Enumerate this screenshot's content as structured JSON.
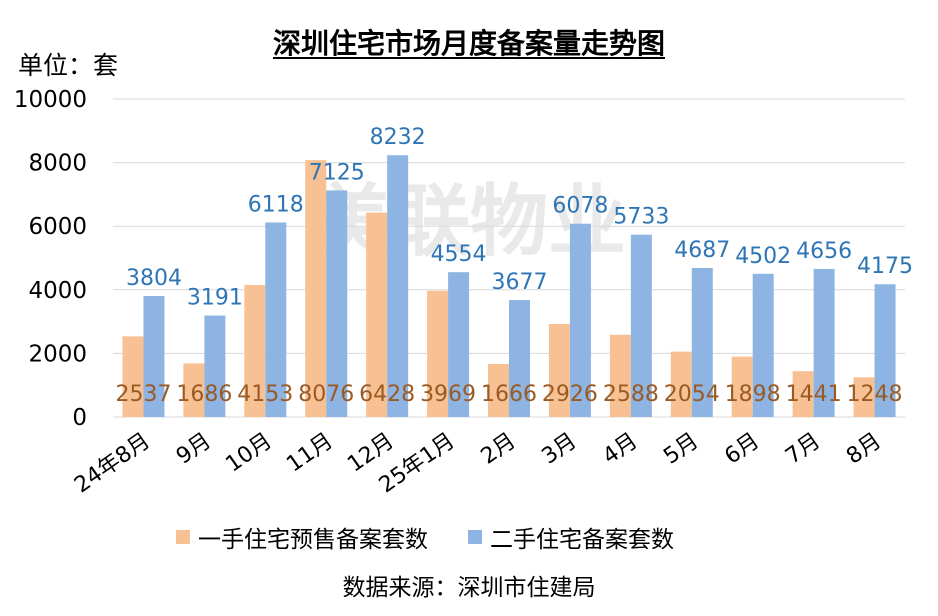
{
  "title": "深圳住宅市场月度备案量走势图",
  "unit_label": "单位：套",
  "source": "数据来源：深圳市住建局",
  "watermark": "美联物业",
  "colors": {
    "series1": "#f8c193",
    "series2": "#8db4e2",
    "label1": "#9a5a24",
    "label2": "#2e75b6",
    "grid": "#d9d9d9"
  },
  "chart_data": {
    "type": "bar",
    "title": "深圳住宅市场月度备案量走势图",
    "ylabel": "单位：套",
    "ylim": [
      0,
      10000
    ],
    "yticks": [
      "0",
      "2000",
      "4000",
      "6000",
      "8000",
      "10000"
    ],
    "grid": true,
    "legend_position": "bottom",
    "categories": [
      "24年8月",
      "9月",
      "10月",
      "11月",
      "12月",
      "25年1月",
      "2月",
      "3月",
      "4月",
      "5月",
      "6月",
      "7月",
      "8月"
    ],
    "series": [
      {
        "name": "一手住宅预售备案套数",
        "values": [
          2537,
          1686,
          4153,
          8076,
          6428,
          3969,
          1666,
          2926,
          2588,
          2054,
          1898,
          1441,
          1248
        ]
      },
      {
        "name": "二手住宅备案套数",
        "values": [
          3804,
          3191,
          6118,
          7125,
          8232,
          4554,
          3677,
          6078,
          5733,
          4687,
          4502,
          4656,
          4175
        ]
      }
    ]
  }
}
